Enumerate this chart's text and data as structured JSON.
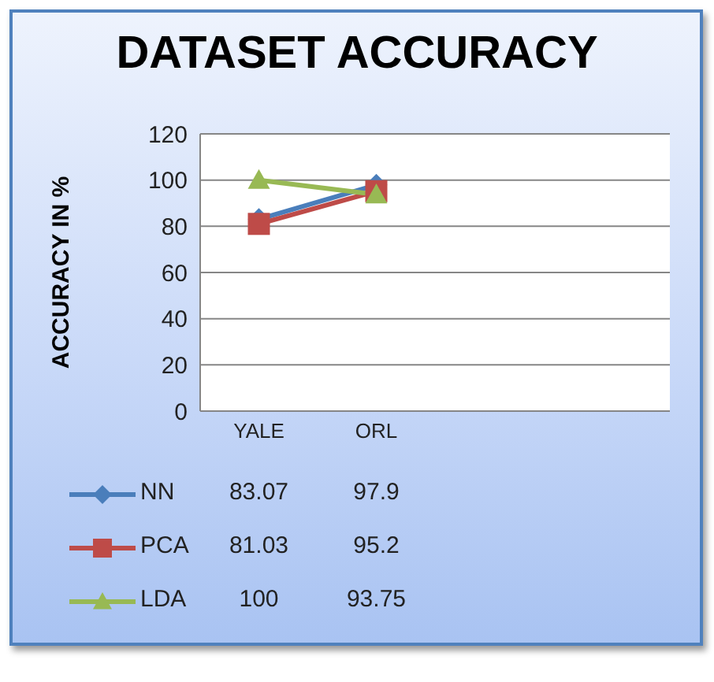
{
  "chart_data": {
    "type": "line",
    "title": "DATASET ACCURACY",
    "ylabel": "ACCURACY IN %",
    "categories": [
      "YALE",
      "ORL",
      null,
      null
    ],
    "series": [
      {
        "name": "NN",
        "color": "#4a7ebb",
        "marker": "diamond",
        "values": [
          83.07,
          97.9,
          null,
          null
        ]
      },
      {
        "name": "PCA",
        "color": "#be4b48",
        "marker": "square",
        "values": [
          81.03,
          95.2,
          null,
          null
        ]
      },
      {
        "name": "LDA",
        "color": "#98b954",
        "marker": "triangle",
        "values": [
          100,
          93.75,
          null,
          null
        ]
      }
    ],
    "ylim": [
      0,
      120
    ],
    "yticks": [
      0,
      20,
      40,
      60,
      80,
      100,
      120
    ],
    "grid": "y",
    "legend": "bottom",
    "data_labels": true
  }
}
